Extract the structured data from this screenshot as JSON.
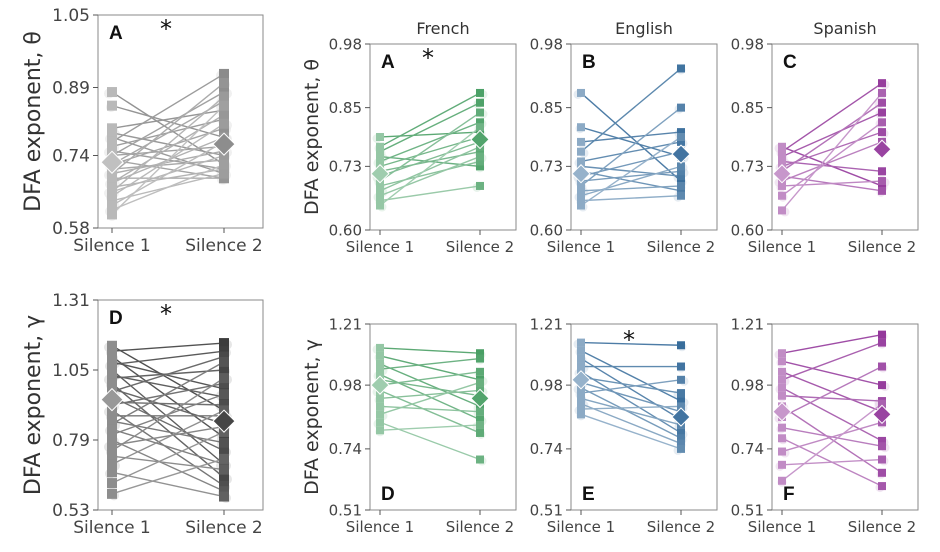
{
  "chart_data": [
    {
      "type": "paired-scatter",
      "panel": "A",
      "group": "Overall",
      "ylabel": "DFA exponent, θ",
      "categories": [
        "Silence 1",
        "Silence 2"
      ],
      "yticks": [
        "0.58",
        "0.74",
        "0.89",
        "1.05"
      ],
      "ylim": [
        0.58,
        1.05
      ],
      "significance": "*",
      "color": "#808080",
      "mean": [
        0.725,
        0.765
      ],
      "pairs": [
        [
          0.88,
          0.72
        ],
        [
          0.85,
          0.78
        ],
        [
          0.8,
          0.84
        ],
        [
          0.79,
          0.74
        ],
        [
          0.78,
          0.7
        ],
        [
          0.77,
          0.92
        ],
        [
          0.76,
          0.82
        ],
        [
          0.75,
          0.71
        ],
        [
          0.74,
          0.88
        ],
        [
          0.74,
          0.76
        ],
        [
          0.73,
          0.69
        ],
        [
          0.72,
          0.8
        ],
        [
          0.72,
          0.86
        ],
        [
          0.71,
          0.73
        ],
        [
          0.7,
          0.9
        ],
        [
          0.7,
          0.75
        ],
        [
          0.69,
          0.69
        ],
        [
          0.68,
          0.83
        ],
        [
          0.68,
          0.78
        ],
        [
          0.67,
          0.71
        ],
        [
          0.66,
          0.87
        ],
        [
          0.66,
          0.74
        ],
        [
          0.65,
          0.81
        ],
        [
          0.64,
          0.7
        ],
        [
          0.63,
          0.77
        ],
        [
          0.62,
          0.72
        ],
        [
          0.61,
          0.85
        ]
      ]
    },
    {
      "type": "paired-scatter",
      "panel": "A",
      "group": "French",
      "title": "French",
      "ylabel": "DFA exponent, θ",
      "categories": [
        "Silence 1",
        "Silence 2"
      ],
      "yticks": [
        "0.60",
        "0.73",
        "0.85",
        "0.98"
      ],
      "ylim": [
        0.6,
        0.98
      ],
      "significance": "*",
      "color": "#3f9a5c",
      "mean": [
        0.715,
        0.785
      ],
      "pairs": [
        [
          0.79,
          0.8
        ],
        [
          0.77,
          0.88
        ],
        [
          0.76,
          0.86
        ],
        [
          0.75,
          0.73
        ],
        [
          0.74,
          0.82
        ],
        [
          0.73,
          0.79
        ],
        [
          0.72,
          0.76
        ],
        [
          0.71,
          0.78
        ],
        [
          0.7,
          0.84
        ],
        [
          0.69,
          0.74
        ],
        [
          0.68,
          0.77
        ],
        [
          0.67,
          0.75
        ],
        [
          0.66,
          0.69
        ],
        [
          0.65,
          0.81
        ]
      ]
    },
    {
      "type": "paired-scatter",
      "panel": "B",
      "group": "English",
      "title": "English",
      "ylabel": "",
      "categories": [
        "Silence 1",
        "Silence 2"
      ],
      "yticks": [
        "0.60",
        "0.73",
        "0.85",
        "0.98"
      ],
      "ylim": [
        0.6,
        0.98
      ],
      "significance": "",
      "color": "#2d6596",
      "mean": [
        0.715,
        0.755
      ],
      "pairs": [
        [
          0.88,
          0.7
        ],
        [
          0.81,
          0.75
        ],
        [
          0.78,
          0.8
        ],
        [
          0.76,
          0.93
        ],
        [
          0.74,
          0.78
        ],
        [
          0.73,
          0.71
        ],
        [
          0.72,
          0.68
        ],
        [
          0.71,
          0.76
        ],
        [
          0.7,
          0.72
        ],
        [
          0.69,
          0.85
        ],
        [
          0.68,
          0.69
        ],
        [
          0.67,
          0.73
        ],
        [
          0.66,
          0.67
        ],
        [
          0.65,
          0.79
        ]
      ]
    },
    {
      "type": "paired-scatter",
      "panel": "C",
      "group": "Spanish",
      "title": "Spanish",
      "ylabel": "",
      "categories": [
        "Silence 1",
        "Silence 2"
      ],
      "yticks": [
        "0.60",
        "0.73",
        "0.85",
        "0.98"
      ],
      "ylim": [
        0.6,
        0.98
      ],
      "significance": "",
      "color": "#8e2e96",
      "mean": [
        0.715,
        0.765
      ],
      "pairs": [
        [
          0.77,
          0.69
        ],
        [
          0.76,
          0.9
        ],
        [
          0.75,
          0.84
        ],
        [
          0.74,
          0.72
        ],
        [
          0.73,
          0.8
        ],
        [
          0.72,
          0.86
        ],
        [
          0.71,
          0.68
        ],
        [
          0.7,
          0.78
        ],
        [
          0.69,
          0.7
        ],
        [
          0.67,
          0.82
        ],
        [
          0.64,
          0.88
        ]
      ]
    },
    {
      "type": "paired-scatter",
      "panel": "D",
      "group": "Overall",
      "ylabel": "DFA exponent, γ",
      "categories": [
        "Silence 1",
        "Silence 2"
      ],
      "yticks": [
        "0.53",
        "0.79",
        "1.05",
        "1.31"
      ],
      "ylim": [
        0.53,
        1.31
      ],
      "significance": "*",
      "color": "#303030",
      "mean": [
        0.94,
        0.86
      ],
      "pairs": [
        [
          1.14,
          0.9
        ],
        [
          1.12,
          1.15
        ],
        [
          1.1,
          0.8
        ],
        [
          1.08,
          0.98
        ],
        [
          1.07,
          1.12
        ],
        [
          1.05,
          0.7
        ],
        [
          1.03,
          0.95
        ],
        [
          1.02,
          1.05
        ],
        [
          1.0,
          0.65
        ],
        [
          0.98,
          0.85
        ],
        [
          0.97,
          1.1
        ],
        [
          0.95,
          0.75
        ],
        [
          0.93,
          0.92
        ],
        [
          0.92,
          1.0
        ],
        [
          0.9,
          0.62
        ],
        [
          0.88,
          0.88
        ],
        [
          0.86,
          0.78
        ],
        [
          0.85,
          1.08
        ],
        [
          0.83,
          0.7
        ],
        [
          0.81,
          0.96
        ],
        [
          0.79,
          0.6
        ],
        [
          0.77,
          0.84
        ],
        [
          0.75,
          1.02
        ],
        [
          0.73,
          0.68
        ],
        [
          0.7,
          0.9
        ],
        [
          0.67,
          0.58
        ],
        [
          0.63,
          0.82
        ],
        [
          0.59,
          0.72
        ]
      ]
    },
    {
      "type": "paired-scatter",
      "panel": "D",
      "group": "French",
      "ylabel": "DFA exponent, γ",
      "categories": [
        "Silence 1",
        "Silence 2"
      ],
      "yticks": [
        "0.51",
        "0.74",
        "0.98",
        "1.21"
      ],
      "ylim": [
        0.51,
        1.21
      ],
      "significance": "",
      "color": "#3f9a5c",
      "mean": [
        0.98,
        0.93
      ],
      "pairs": [
        [
          1.12,
          1.1
        ],
        [
          1.09,
          1.0
        ],
        [
          1.06,
          0.9
        ],
        [
          1.04,
          1.08
        ],
        [
          1.02,
          0.85
        ],
        [
          1.0,
          0.94
        ],
        [
          0.98,
          1.03
        ],
        [
          0.96,
          0.8
        ],
        [
          0.93,
          0.96
        ],
        [
          0.9,
          0.88
        ],
        [
          0.87,
          0.99
        ],
        [
          0.84,
          0.7
        ],
        [
          0.81,
          0.83
        ]
      ]
    },
    {
      "type": "paired-scatter",
      "panel": "E",
      "group": "English",
      "ylabel": "",
      "categories": [
        "Silence 1",
        "Silence 2"
      ],
      "yticks": [
        "0.51",
        "0.74",
        "0.98",
        "1.21"
      ],
      "ylim": [
        0.51,
        1.21
      ],
      "significance": "*",
      "color": "#2d6596",
      "mean": [
        1.0,
        0.86
      ],
      "pairs": [
        [
          1.14,
          1.13
        ],
        [
          1.11,
          0.92
        ],
        [
          1.08,
          0.85
        ],
        [
          1.05,
          1.05
        ],
        [
          1.03,
          0.8
        ],
        [
          1.01,
          0.95
        ],
        [
          0.99,
          0.88
        ],
        [
          0.97,
          0.78
        ],
        [
          0.95,
          1.0
        ],
        [
          0.93,
          0.83
        ],
        [
          0.91,
          0.76
        ],
        [
          0.89,
          0.9
        ],
        [
          0.87,
          0.74
        ]
      ]
    },
    {
      "type": "paired-scatter",
      "panel": "F",
      "group": "Spanish",
      "ylabel": "",
      "categories": [
        "Silence 1",
        "Silence 2"
      ],
      "yticks": [
        "0.51",
        "0.74",
        "0.98",
        "1.21"
      ],
      "ylim": [
        0.51,
        1.21
      ],
      "significance": "",
      "color": "#8e2e96",
      "mean": [
        0.88,
        0.87
      ],
      "pairs": [
        [
          1.1,
          1.17
        ],
        [
          1.07,
          0.98
        ],
        [
          1.03,
          0.88
        ],
        [
          1.0,
          1.14
        ],
        [
          0.97,
          0.77
        ],
        [
          0.94,
          0.92
        ],
        [
          0.9,
          0.65
        ],
        [
          0.86,
          1.05
        ],
        [
          0.82,
          0.75
        ],
        [
          0.78,
          0.6
        ],
        [
          0.73,
          0.84
        ],
        [
          0.68,
          0.7
        ],
        [
          0.62,
          0.91
        ]
      ]
    }
  ]
}
